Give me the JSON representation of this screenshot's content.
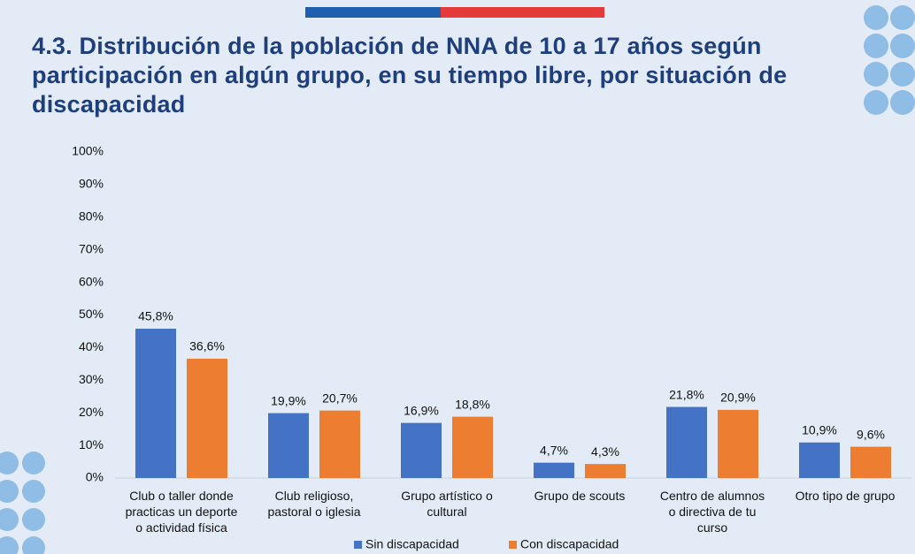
{
  "chart_data": {
    "type": "bar",
    "title": "4.3. Distribución de la población de NNA de 10 a 17 años según participación en algún grupo, en su tiempo libre, por situación de discapacidad",
    "categories": [
      "Club o taller donde\npracticas un deporte\no actividad física",
      "Club religioso,\npastoral o iglesia",
      "Grupo artístico o\ncultural",
      "Grupo de scouts",
      "Centro de alumnos\no directiva de tu\ncurso",
      "Otro tipo de grupo"
    ],
    "series": [
      {
        "name": "Sin discapacidad",
        "color": "#4472c4",
        "values": [
          45.8,
          19.9,
          16.9,
          4.7,
          21.8,
          10.9
        ],
        "value_labels": [
          "45,8%",
          "19,9%",
          "16,9%",
          "4,7%",
          "21,8%",
          "10,9%"
        ]
      },
      {
        "name": "Con discapacidad",
        "color": "#ed7d31",
        "values": [
          36.6,
          20.7,
          18.8,
          4.3,
          20.9,
          9.6
        ],
        "value_labels": [
          "36,6%",
          "20,7%",
          "18,8%",
          "4,3%",
          "20,9%",
          "9,6%"
        ]
      }
    ],
    "ylim": [
      0,
      100
    ],
    "yticks": [
      {
        "value": 0,
        "label": "0%"
      },
      {
        "value": 10,
        "label": "10%"
      },
      {
        "value": 20,
        "label": "20%"
      },
      {
        "value": 30,
        "label": "30%"
      },
      {
        "value": 40,
        "label": "40%"
      },
      {
        "value": 50,
        "label": "50%"
      },
      {
        "value": 60,
        "label": "60%"
      },
      {
        "value": 70,
        "label": "70%"
      },
      {
        "value": 80,
        "label": "80%"
      },
      {
        "value": 90,
        "label": "90%"
      },
      {
        "value": 100,
        "label": "100%"
      }
    ],
    "grid": false
  }
}
